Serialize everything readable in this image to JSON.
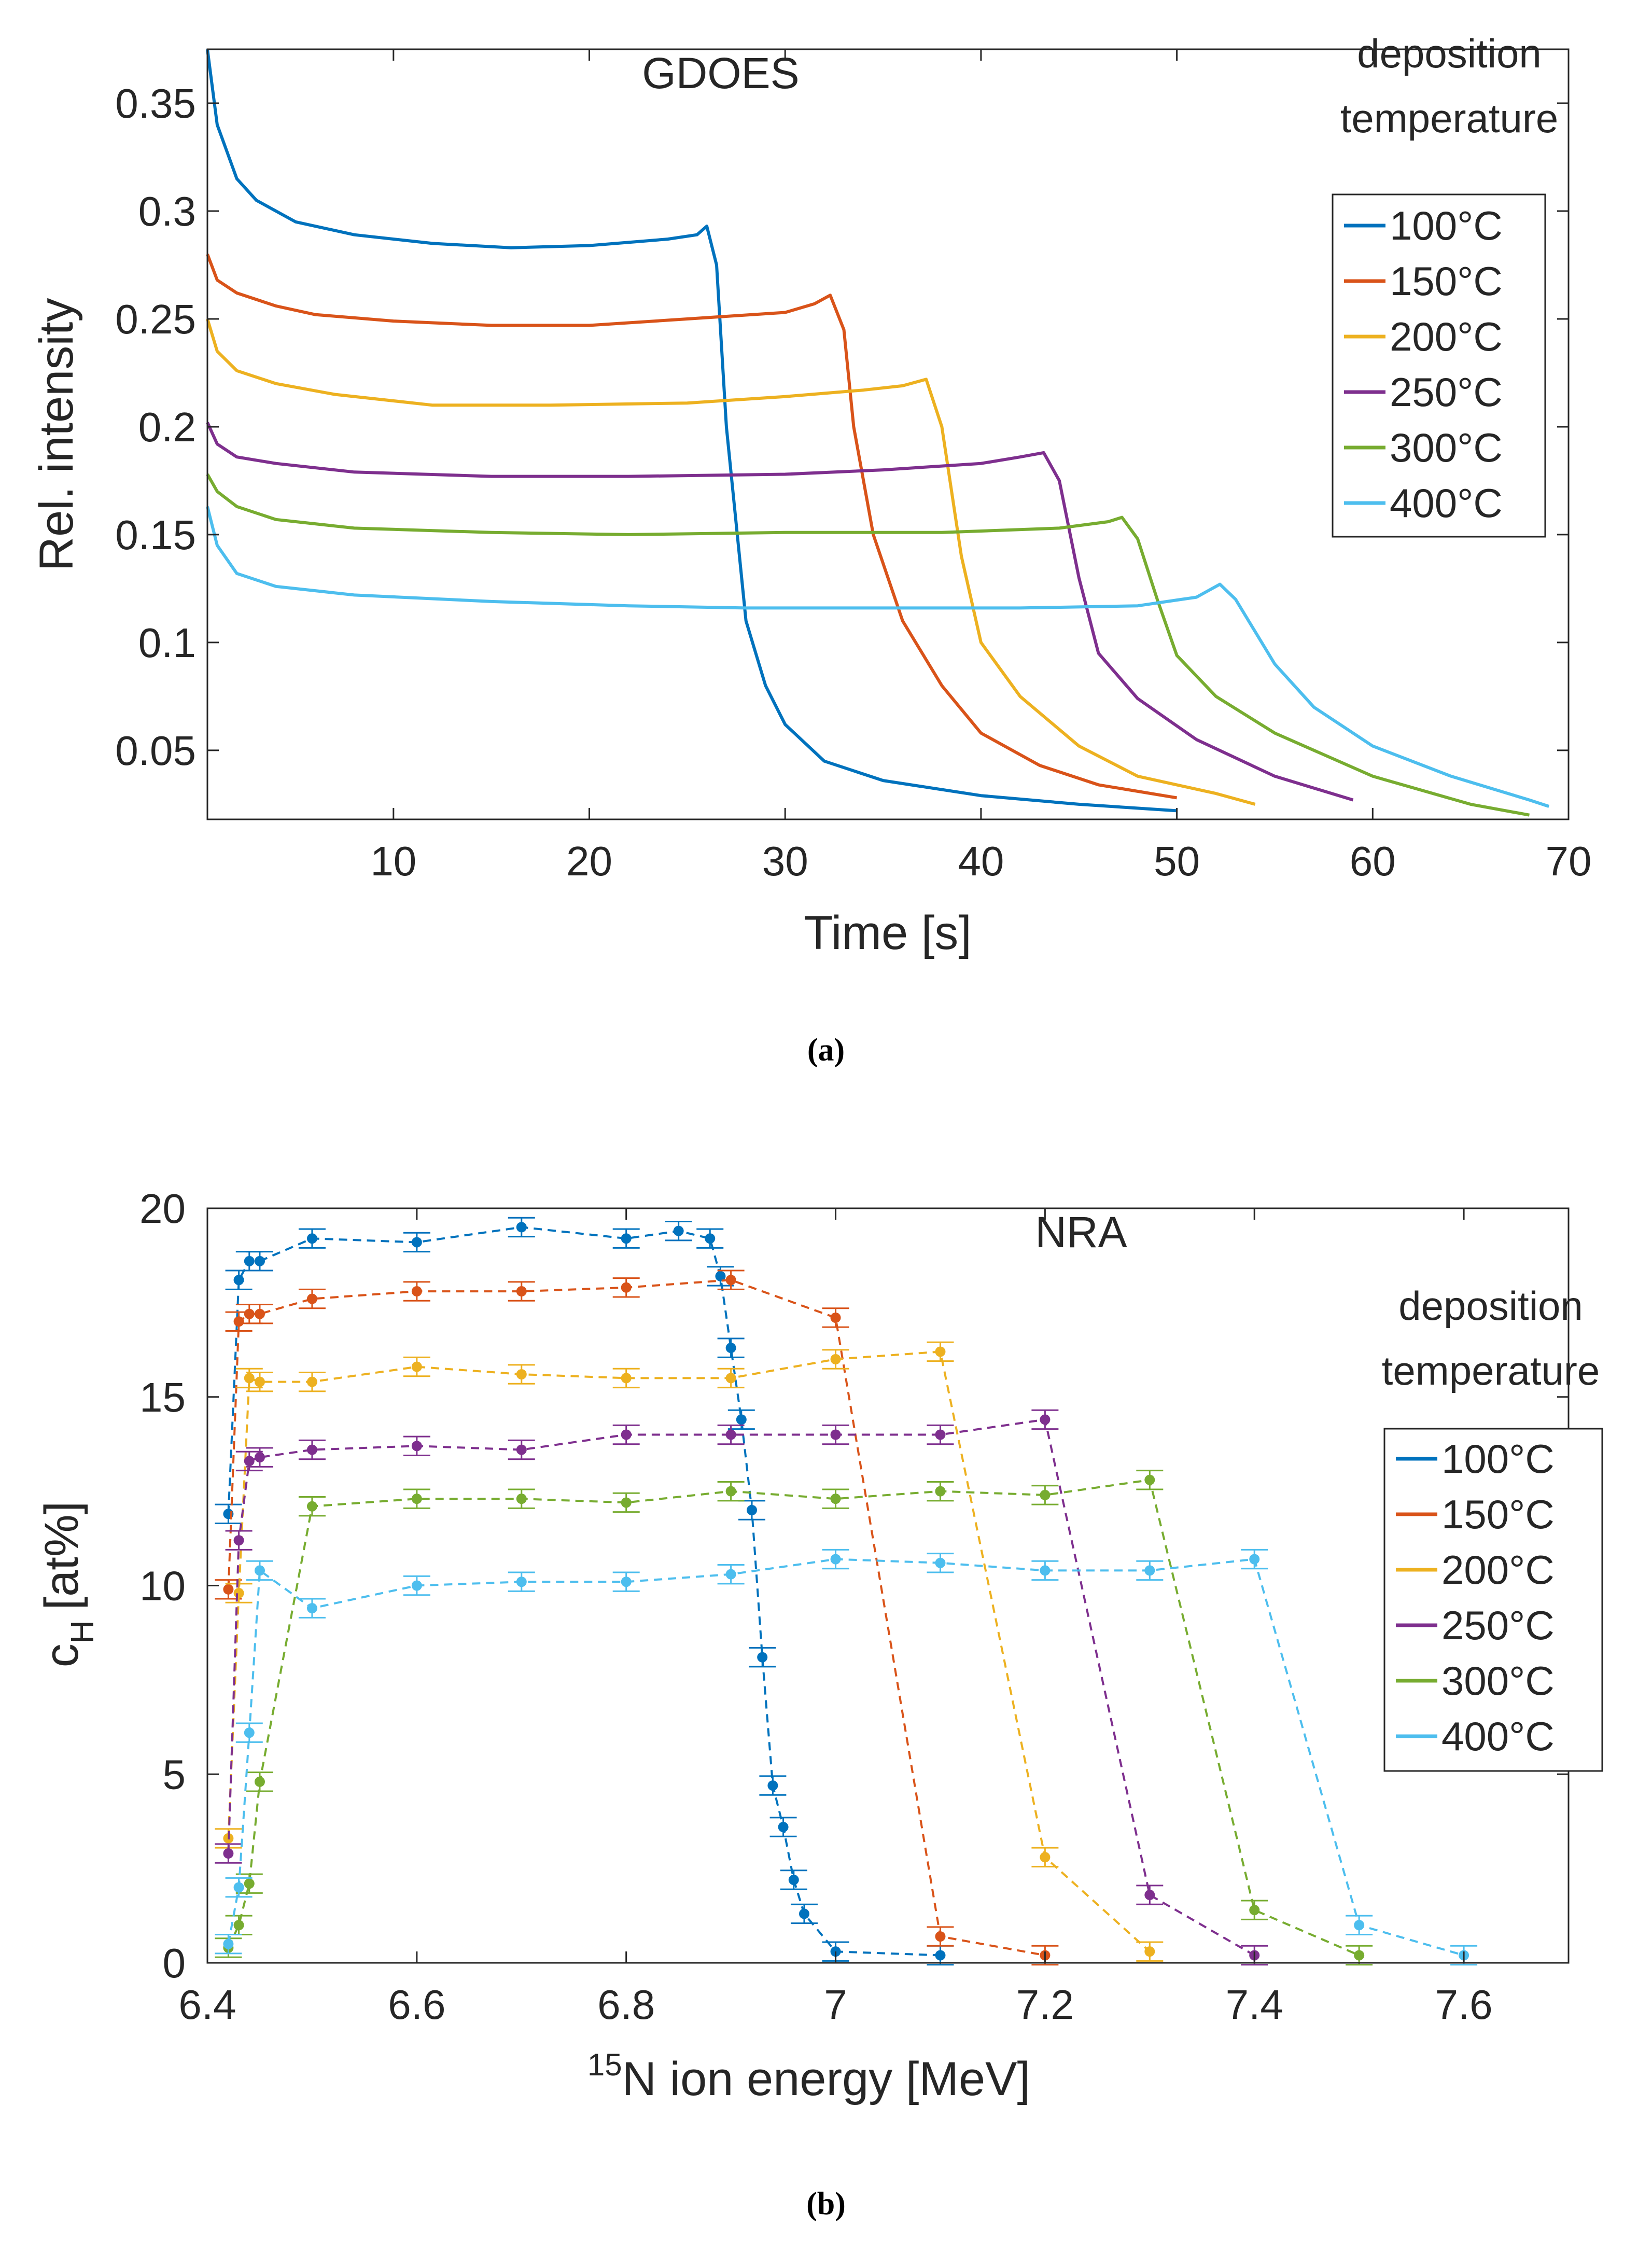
{
  "colors": [
    "#0072BD",
    "#D95319",
    "#EDB120",
    "#7E2F8E",
    "#77AC30",
    "#4DBEEE"
  ],
  "legend_labels": [
    "100°C",
    "150°C",
    "200°C",
    "250°C",
    "300°C",
    "400°C"
  ],
  "captions": {
    "a": "(a)",
    "b": "(b)"
  },
  "chart_data": [
    {
      "type": "line",
      "title": "GDOES",
      "annotation": [
        "deposition",
        "temperature"
      ],
      "xlabel": "Time [s]",
      "ylabel": "Rel. intensity",
      "xlim": [
        0.5,
        70
      ],
      "ylim": [
        0.018,
        0.375
      ],
      "xticks": [
        10,
        20,
        30,
        40,
        50,
        60,
        70
      ],
      "yticks": [
        0.05,
        0.1,
        0.15,
        0.2,
        0.25,
        0.3,
        0.35
      ],
      "ytick_labels": [
        "0.05",
        "0.1",
        "0.15",
        "0.2",
        "0.25",
        "0.3",
        "0.35"
      ],
      "legend_position": "top-right",
      "series": [
        {
          "name": "100°C",
          "x": [
            0.5,
            1,
            2,
            3,
            5,
            8,
            12,
            16,
            20,
            24,
            25.5,
            26,
            26.5,
            27,
            28,
            29,
            30,
            32,
            35,
            40,
            45,
            50
          ],
          "y": [
            0.375,
            0.34,
            0.315,
            0.305,
            0.295,
            0.289,
            0.285,
            0.283,
            0.284,
            0.287,
            0.289,
            0.293,
            0.275,
            0.2,
            0.11,
            0.08,
            0.062,
            0.045,
            0.036,
            0.029,
            0.025,
            0.022
          ]
        },
        {
          "name": "150°C",
          "x": [
            0.5,
            1,
            2,
            4,
            6,
            10,
            15,
            20,
            25,
            30,
            31.5,
            32.3,
            33,
            33.5,
            34.5,
            36,
            38,
            40,
            43,
            46,
            50
          ],
          "y": [
            0.28,
            0.268,
            0.262,
            0.256,
            0.252,
            0.249,
            0.247,
            0.247,
            0.25,
            0.253,
            0.257,
            0.261,
            0.245,
            0.2,
            0.15,
            0.11,
            0.08,
            0.058,
            0.043,
            0.034,
            0.028
          ]
        },
        {
          "name": "200°C",
          "x": [
            0.5,
            1,
            2,
            4,
            7,
            12,
            18,
            25,
            30,
            34,
            36,
            37.2,
            38,
            39,
            40,
            42,
            45,
            48,
            52,
            54
          ],
          "y": [
            0.25,
            0.235,
            0.226,
            0.22,
            0.215,
            0.21,
            0.21,
            0.211,
            0.214,
            0.217,
            0.219,
            0.222,
            0.2,
            0.14,
            0.1,
            0.075,
            0.052,
            0.038,
            0.03,
            0.025
          ]
        },
        {
          "name": "250°C",
          "x": [
            0.5,
            1,
            2,
            4,
            8,
            15,
            22,
            30,
            35,
            40,
            42,
            43.2,
            44,
            45,
            46,
            48,
            51,
            55,
            59
          ],
          "y": [
            0.202,
            0.192,
            0.186,
            0.183,
            0.179,
            0.177,
            0.177,
            0.178,
            0.18,
            0.183,
            0.186,
            0.188,
            0.175,
            0.13,
            0.095,
            0.074,
            0.055,
            0.038,
            0.027
          ]
        },
        {
          "name": "300°C",
          "x": [
            0.5,
            1,
            2,
            4,
            8,
            15,
            22,
            30,
            38,
            44,
            46.5,
            47.2,
            48,
            49,
            50,
            52,
            55,
            60,
            65,
            68
          ],
          "y": [
            0.178,
            0.17,
            0.163,
            0.157,
            0.153,
            0.151,
            0.15,
            0.151,
            0.151,
            0.153,
            0.156,
            0.158,
            0.148,
            0.12,
            0.094,
            0.075,
            0.058,
            0.038,
            0.025,
            0.02
          ]
        },
        {
          "name": "400°C",
          "x": [
            0.5,
            1,
            2,
            4,
            8,
            15,
            22,
            28,
            35,
            42,
            48,
            51,
            52.2,
            53,
            54,
            55,
            57,
            60,
            64,
            68,
            69
          ],
          "y": [
            0.163,
            0.145,
            0.132,
            0.126,
            0.122,
            0.119,
            0.117,
            0.116,
            0.116,
            0.116,
            0.117,
            0.121,
            0.127,
            0.12,
            0.105,
            0.09,
            0.07,
            0.052,
            0.038,
            0.027,
            0.024
          ]
        }
      ]
    },
    {
      "type": "line",
      "title": "NRA",
      "annotation": [
        "deposition",
        "temperature"
      ],
      "xlabel_sup": "15",
      "xlabel": "N ion energy [MeV]",
      "ylabel": "c",
      "ylabel_sub": "H",
      "ylabel_rest": "[at%]",
      "xlim": [
        6.4,
        7.7
      ],
      "ylim": [
        0,
        20
      ],
      "xticks": [
        6.4,
        6.6,
        6.8,
        7,
        7.2,
        7.4,
        7.6
      ],
      "xtick_labels": [
        "6.4",
        "6.6",
        "6.8",
        "7",
        "7.2",
        "7.4",
        "7.6"
      ],
      "yticks": [
        0,
        5,
        10,
        15,
        20
      ],
      "ytick_labels": [
        "0",
        "5",
        "10",
        "15",
        "20"
      ],
      "legend_position": "right",
      "series": [
        {
          "name": "100°C",
          "x": [
            6.42,
            6.43,
            6.44,
            6.45,
            6.5,
            6.6,
            6.7,
            6.8,
            6.85,
            6.88,
            6.89,
            6.9,
            6.91,
            6.92,
            6.93,
            6.94,
            6.95,
            6.96,
            6.97,
            7.0,
            7.1
          ],
          "y": [
            11.9,
            18.1,
            18.6,
            18.6,
            19.2,
            19.1,
            19.5,
            19.2,
            19.4,
            19.2,
            18.2,
            16.3,
            14.4,
            12.0,
            8.1,
            4.7,
            3.6,
            2.2,
            1.3,
            0.3,
            0.2
          ]
        },
        {
          "name": "150°C",
          "x": [
            6.42,
            6.43,
            6.44,
            6.45,
            6.5,
            6.6,
            6.7,
            6.8,
            6.9,
            7.0,
            7.1,
            7.2
          ],
          "y": [
            9.9,
            17.0,
            17.2,
            17.2,
            17.6,
            17.8,
            17.8,
            17.9,
            18.1,
            17.1,
            0.7,
            0.2
          ]
        },
        {
          "name": "200°C",
          "x": [
            6.42,
            6.43,
            6.44,
            6.45,
            6.5,
            6.6,
            6.7,
            6.8,
            6.9,
            7.0,
            7.1,
            7.2,
            7.3
          ],
          "y": [
            3.3,
            9.8,
            15.5,
            15.4,
            15.4,
            15.8,
            15.6,
            15.5,
            15.5,
            16.0,
            16.2,
            2.8,
            0.3
          ]
        },
        {
          "name": "250°C",
          "x": [
            6.42,
            6.43,
            6.44,
            6.45,
            6.5,
            6.6,
            6.7,
            6.8,
            6.9,
            7.0,
            7.1,
            7.2,
            7.3,
            7.4
          ],
          "y": [
            2.9,
            11.2,
            13.3,
            13.4,
            13.6,
            13.7,
            13.6,
            14.0,
            14.0,
            14.0,
            14.0,
            14.4,
            1.8,
            0.2
          ]
        },
        {
          "name": "300°C",
          "x": [
            6.42,
            6.43,
            6.44,
            6.45,
            6.5,
            6.6,
            6.7,
            6.8,
            6.9,
            7.0,
            7.1,
            7.2,
            7.3,
            7.4,
            7.5
          ],
          "y": [
            0.4,
            1.0,
            2.1,
            4.8,
            12.1,
            12.3,
            12.3,
            12.2,
            12.5,
            12.3,
            12.5,
            12.4,
            12.8,
            1.4,
            0.2
          ]
        },
        {
          "name": "400°C",
          "x": [
            6.42,
            6.43,
            6.44,
            6.45,
            6.5,
            6.6,
            6.7,
            6.8,
            6.9,
            7.0,
            7.1,
            7.2,
            7.3,
            7.4,
            7.5,
            7.6
          ],
          "y": [
            0.5,
            2.0,
            6.1,
            10.4,
            9.4,
            10.0,
            10.1,
            10.1,
            10.3,
            10.7,
            10.6,
            10.4,
            10.4,
            10.7,
            1.0,
            0.2
          ]
        }
      ]
    }
  ]
}
